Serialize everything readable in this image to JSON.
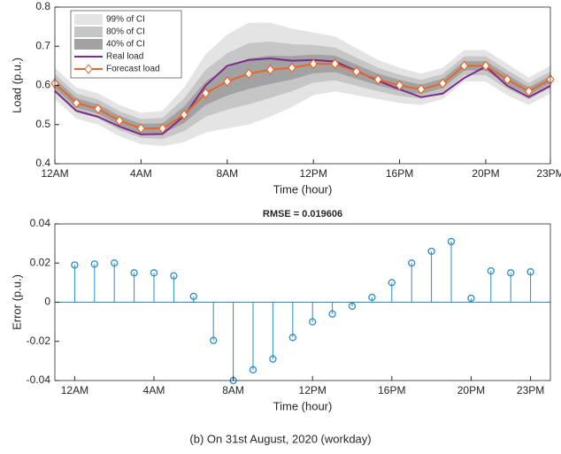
{
  "chart_data": [
    {
      "type": "band-line",
      "x": [
        0,
        1,
        2,
        3,
        4,
        5,
        6,
        7,
        8,
        9,
        10,
        11,
        12,
        13,
        14,
        15,
        16,
        17,
        18,
        19,
        20,
        21,
        22,
        23
      ],
      "xlim": [
        0,
        23
      ],
      "xticks": [
        {
          "value": 0,
          "label": "12AM"
        },
        {
          "value": 4,
          "label": "4AM"
        },
        {
          "value": 8,
          "label": "8AM"
        },
        {
          "value": 12,
          "label": "12PM"
        },
        {
          "value": 16,
          "label": "16PM"
        },
        {
          "value": 20,
          "label": "20PM"
        },
        {
          "value": 23,
          "label": "23PM"
        }
      ],
      "ylim": [
        0.4,
        0.8
      ],
      "yticks": [
        0.4,
        0.5,
        0.6,
        0.7,
        0.8
      ],
      "x_label": "Time (hour)",
      "y_label": "Load (p.u.)",
      "legend": "upper left",
      "bands": [
        {
          "name": "99% of CI",
          "color": "#e4e4e4",
          "lower": [
            0.565,
            0.515,
            0.5,
            0.47,
            0.45,
            0.445,
            0.455,
            0.48,
            0.49,
            0.5,
            0.52,
            0.545,
            0.575,
            0.585,
            0.575,
            0.565,
            0.555,
            0.55,
            0.565,
            0.61,
            0.61,
            0.575,
            0.55,
            0.58
          ],
          "upper": [
            0.645,
            0.595,
            0.58,
            0.55,
            0.53,
            0.535,
            0.595,
            0.68,
            0.73,
            0.76,
            0.76,
            0.745,
            0.735,
            0.725,
            0.695,
            0.665,
            0.645,
            0.63,
            0.645,
            0.69,
            0.69,
            0.655,
            0.62,
            0.65
          ]
        },
        {
          "name": "80% of CI",
          "color": "#c6c6c6",
          "lower": [
            0.581,
            0.531,
            0.516,
            0.486,
            0.466,
            0.463,
            0.483,
            0.52,
            0.538,
            0.552,
            0.568,
            0.585,
            0.607,
            0.613,
            0.599,
            0.585,
            0.573,
            0.566,
            0.581,
            0.626,
            0.626,
            0.591,
            0.564,
            0.594
          ],
          "upper": [
            0.629,
            0.579,
            0.564,
            0.534,
            0.514,
            0.517,
            0.567,
            0.64,
            0.682,
            0.708,
            0.712,
            0.705,
            0.703,
            0.697,
            0.671,
            0.645,
            0.627,
            0.614,
            0.629,
            0.674,
            0.674,
            0.639,
            0.606,
            0.636
          ]
        },
        {
          "name": "40% of CI",
          "color": "#a2a2a2",
          "lower": [
            0.593,
            0.543,
            0.528,
            0.498,
            0.478,
            0.477,
            0.504,
            0.55,
            0.574,
            0.591,
            0.604,
            0.615,
            0.631,
            0.634,
            0.617,
            0.6,
            0.586,
            0.578,
            0.593,
            0.638,
            0.638,
            0.603,
            0.575,
            0.605
          ],
          "upper": [
            0.617,
            0.567,
            0.552,
            0.522,
            0.502,
            0.503,
            0.546,
            0.61,
            0.646,
            0.669,
            0.676,
            0.675,
            0.679,
            0.676,
            0.653,
            0.63,
            0.614,
            0.602,
            0.617,
            0.662,
            0.662,
            0.627,
            0.595,
            0.625
          ]
        }
      ],
      "series": [
        {
          "name": "Real load",
          "color": "#7b2c8c",
          "marker": "none",
          "values": [
            0.586,
            0.535,
            0.52,
            0.495,
            0.475,
            0.476,
            0.522,
            0.6,
            0.65,
            0.665,
            0.669,
            0.663,
            0.665,
            0.661,
            0.637,
            0.612,
            0.59,
            0.57,
            0.579,
            0.619,
            0.648,
            0.599,
            0.57,
            0.599
          ]
        },
        {
          "name": "Forecast load",
          "color": "#e8662a",
          "marker": "diamond",
          "values": [
            0.605,
            0.555,
            0.54,
            0.51,
            0.49,
            0.49,
            0.525,
            0.58,
            0.61,
            0.63,
            0.64,
            0.645,
            0.655,
            0.655,
            0.635,
            0.615,
            0.6,
            0.59,
            0.605,
            0.65,
            0.65,
            0.615,
            0.585,
            0.615
          ]
        }
      ]
    },
    {
      "type": "stem",
      "title": "RMSE = 0.019606",
      "x": [
        0,
        1,
        2,
        3,
        4,
        5,
        6,
        7,
        8,
        9,
        10,
        11,
        12,
        13,
        14,
        15,
        16,
        17,
        18,
        19,
        20,
        21,
        22,
        23
      ],
      "xlim": [
        -1,
        24
      ],
      "xticks": [
        {
          "value": 0,
          "label": "12AM"
        },
        {
          "value": 4,
          "label": "4AM"
        },
        {
          "value": 8,
          "label": "8AM"
        },
        {
          "value": 12,
          "label": "12PM"
        },
        {
          "value": 16,
          "label": "16PM"
        },
        {
          "value": 20,
          "label": "20PM"
        },
        {
          "value": 23,
          "label": "23PM"
        }
      ],
      "ylim": [
        -0.04,
        0.04
      ],
      "yticks": [
        -0.04,
        -0.02,
        0,
        0.02,
        0.04
      ],
      "x_label": "Time (hour)",
      "y_label": "Error (p.u.)",
      "color": "#2b8cc4",
      "values": [
        0.019,
        0.0195,
        0.02,
        0.015,
        0.015,
        0.0135,
        0.003,
        -0.0195,
        -0.04,
        -0.0345,
        -0.029,
        -0.018,
        -0.01,
        -0.006,
        -0.002,
        0.0025,
        0.01,
        0.02,
        0.026,
        0.031,
        0.002,
        0.016,
        0.015,
        0.0155
      ]
    }
  ],
  "caption": "(b) On 31st August, 2020 (workday)"
}
